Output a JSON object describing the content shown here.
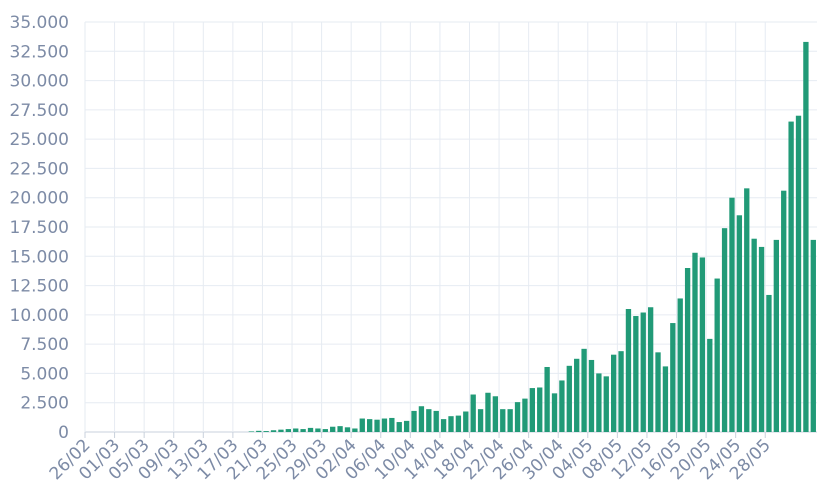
{
  "chart_data": {
    "type": "bar",
    "color": "#219a77",
    "ylim": [
      0,
      35000
    ],
    "yticks": [
      0,
      2500,
      5000,
      7500,
      10000,
      12500,
      15000,
      17500,
      20000,
      22500,
      25000,
      27500,
      30000,
      32500,
      35000
    ],
    "ytick_labels": [
      "0",
      "2.500",
      "5.000",
      "7.500",
      "10.000",
      "12.500",
      "15.000",
      "17.500",
      "20.000",
      "22.500",
      "25.000",
      "27.500",
      "30.000",
      "32.500",
      "35.000"
    ],
    "xtick_labels": [
      "26/02",
      "01/03",
      "05/03",
      "09/03",
      "13/03",
      "17/03",
      "21/03",
      "25/03",
      "29/03",
      "02/04",
      "06/04",
      "10/04",
      "14/04",
      "18/04",
      "22/04",
      "26/04",
      "30/04",
      "04/05",
      "08/05",
      "12/05",
      "16/05",
      "20/05",
      "24/05",
      "28/05"
    ],
    "grid": true,
    "values": [
      0,
      0,
      0,
      0,
      0,
      0,
      0,
      0,
      0,
      0,
      0,
      0,
      0,
      0,
      0,
      0,
      0,
      0,
      0,
      0,
      0,
      0,
      50,
      100,
      80,
      150,
      200,
      250,
      300,
      250,
      350,
      300,
      250,
      450,
      500,
      400,
      300,
      1150,
      1100,
      1050,
      1150,
      1200,
      850,
      950,
      1800,
      2200,
      1950,
      1800,
      1100,
      1350,
      1400,
      1750,
      3200,
      1950,
      3350,
      3050,
      1950,
      1950,
      2550,
      2850,
      3750,
      3800,
      5550,
      3300,
      4400,
      5650,
      6250,
      7100,
      6150,
      5000,
      4750,
      6600,
      6900,
      10500,
      9900,
      10200,
      10650,
      6800,
      5600,
      9300,
      11400,
      14000,
      15300,
      14900,
      7950,
      13100,
      17400,
      20000,
      18500,
      20800,
      16500,
      15800,
      11700,
      16400,
      20600,
      26500,
      27000,
      33300,
      16400
    ]
  }
}
